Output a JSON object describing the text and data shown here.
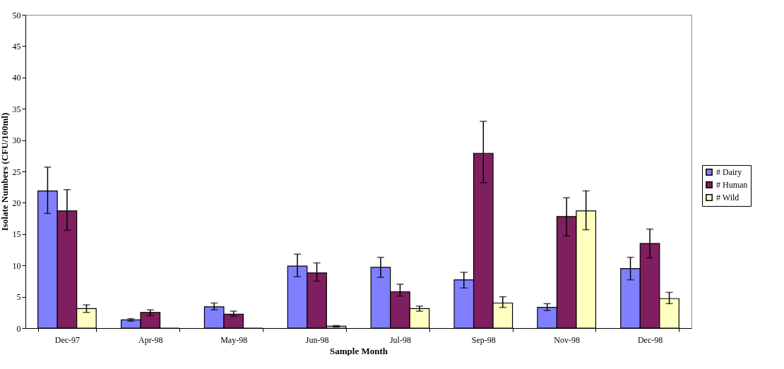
{
  "chart_data": {
    "type": "bar",
    "xlabel": "Sample Month",
    "ylabel": "Isolate Numbers (CFU/100ml)",
    "categories": [
      "Dec-97",
      "Apr-98",
      "May-98",
      "Jun-98",
      "Jul-98",
      "Sep-98",
      "Nov-98",
      "Dec-98"
    ],
    "series": [
      {
        "name": "# Dairy",
        "color": "#8080ff",
        "values": [
          21.9,
          1.3,
          3.4,
          9.9,
          9.7,
          7.7,
          3.3,
          9.5
        ],
        "errors": [
          [
            18.3,
            25.7
          ],
          [
            1.1,
            1.5
          ],
          [
            2.9,
            4.0
          ],
          [
            8.2,
            11.8
          ],
          [
            8.1,
            11.3
          ],
          [
            6.4,
            8.9
          ],
          [
            2.8,
            3.9
          ],
          [
            7.7,
            11.3
          ]
        ]
      },
      {
        "name": "# Human",
        "color": "#801f5f",
        "values": [
          18.7,
          2.5,
          2.2,
          8.8,
          5.8,
          27.9,
          17.8,
          13.5
        ],
        "errors": [
          [
            15.6,
            22.1
          ],
          [
            2.0,
            2.9
          ],
          [
            1.9,
            2.7
          ],
          [
            7.5,
            10.4
          ],
          [
            5.1,
            7.0
          ],
          [
            23.2,
            33.0
          ],
          [
            14.7,
            20.8
          ],
          [
            11.2,
            15.8
          ]
        ]
      },
      {
        "name": "# Wild",
        "color": "#ffffc0",
        "values": [
          3.1,
          0,
          0,
          0.3,
          3.1,
          4.0,
          18.7,
          4.7
        ],
        "errors": [
          [
            2.5,
            3.7
          ],
          null,
          null,
          [
            0.2,
            0.4
          ],
          [
            2.7,
            3.5
          ],
          [
            3.3,
            5.0
          ],
          [
            15.7,
            21.9
          ],
          [
            3.9,
            5.7
          ]
        ]
      }
    ],
    "ylim": [
      0,
      50
    ],
    "yticks": [
      0,
      5,
      10,
      15,
      20,
      25,
      30,
      35,
      40,
      45,
      50
    ],
    "grid": false,
    "legend": "right"
  }
}
